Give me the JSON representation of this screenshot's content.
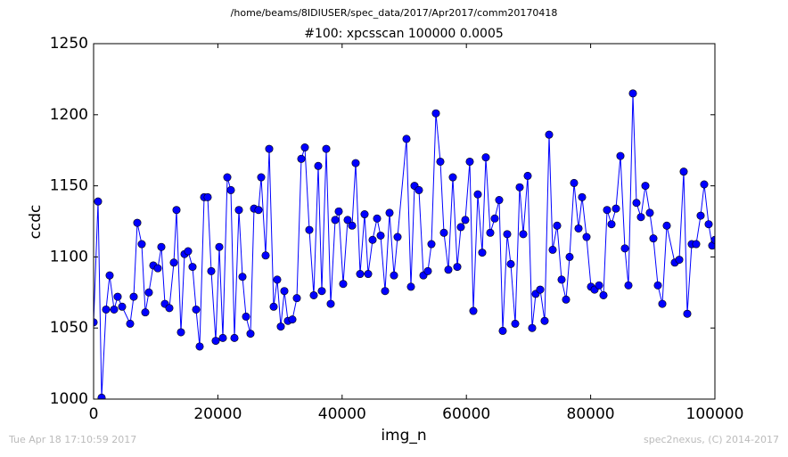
{
  "chart_data": {
    "type": "line",
    "suptitle": "/home/beams/8IDIUSER/spec_data/2017/Apr2017/comm20170418",
    "title": "#100: xpcsscan 100000 0.0005",
    "xlabel": "img_n",
    "ylabel": "ccdc",
    "annotations": [
      "Tue Apr 18 17:10:59 2017",
      "spec2nexus, (C) 2014-2017"
    ],
    "xlim": [
      0,
      100000
    ],
    "ylim": [
      1000,
      1250
    ],
    "xticks": [
      0,
      20000,
      40000,
      60000,
      80000,
      100000
    ],
    "yticks": [
      1000,
      1050,
      1100,
      1150,
      1200,
      1250
    ],
    "grid": false,
    "x": [
      0,
      717,
      1291,
      2009,
      2583,
      3300,
      3874,
      4591,
      5882,
      6456,
      7030,
      7747,
      8321,
      8895,
      9612,
      10330,
      10904,
      11478,
      12195,
      12913,
      13343,
      14060,
      14634,
      15208,
      15925,
      16499,
      17073,
      17791,
      18364,
      18938,
      19656,
      20230,
      20803,
      21521,
      22095,
      22669,
      23386,
      23960,
      24534,
      25251,
      25825,
      26542,
      26973,
      27690,
      28264,
      28981,
      29555,
      30129,
      30703,
      31277,
      31994,
      32712,
      33429,
      34003,
      34720,
      35438,
      36155,
      36729,
      37446,
      38164,
      38881,
      39455,
      40172,
      40890,
      41607,
      42181,
      42898,
      43615,
      44189,
      44907,
      45624,
      46198,
      46915,
      47633,
      48350,
      48924,
      50359,
      51076,
      51650,
      52367,
      53085,
      53802,
      54376,
      55093,
      55811,
      56384,
      57102,
      57819,
      58536,
      59110,
      59828,
      60545,
      61119,
      61836,
      62553,
      63127,
      63845,
      64562,
      65280,
      65853,
      66571,
      67145,
      67862,
      68580,
      69153,
      69871,
      70588,
      71162,
      71880,
      72597,
      73314,
      73888,
      74606,
      75323,
      76040,
      76614,
      77331,
      78049,
      78623,
      79340,
      80057,
      80631,
      81349,
      82066,
      82640,
      83357,
      84075,
      84792,
      85509,
      86083,
      86801,
      87374,
      88092,
      88809,
      89526,
      90100,
      90818,
      91535,
      92253,
      93544,
      94261,
      94979,
      95552,
      96270,
      96987,
      97704,
      98278,
      98996,
      99569,
      100000
    ],
    "series": [
      {
        "color": "#0000ff",
        "values": [
          1054,
          1139,
          1001,
          1063,
          1087,
          1063,
          1072,
          1065,
          1053,
          1072,
          1124,
          1109,
          1061,
          1075,
          1094,
          1092,
          1107,
          1067,
          1064,
          1096,
          1133,
          1047,
          1102,
          1104,
          1093,
          1063,
          1037,
          1142,
          1142,
          1090,
          1041,
          1107,
          1043,
          1156,
          1147,
          1043,
          1133,
          1086,
          1058,
          1046,
          1134,
          1133,
          1156,
          1101,
          1176,
          1065,
          1084,
          1051,
          1076,
          1055,
          1056,
          1071,
          1169,
          1177,
          1119,
          1073,
          1164,
          1076,
          1176,
          1067,
          1126,
          1132,
          1081,
          1126,
          1122,
          1166,
          1088,
          1130,
          1088,
          1112,
          1127,
          1115,
          1076,
          1131,
          1087,
          1114,
          1183,
          1079,
          1150,
          1147,
          1087,
          1090,
          1109,
          1201,
          1167,
          1117,
          1091,
          1156,
          1093,
          1121,
          1126,
          1167,
          1062,
          1144,
          1103,
          1170,
          1117,
          1127,
          1140,
          1048,
          1116,
          1095,
          1053,
          1149,
          1116,
          1157,
          1050,
          1074,
          1077,
          1055,
          1186,
          1105,
          1122,
          1084,
          1070,
          1100,
          1152,
          1120,
          1142,
          1114,
          1079,
          1077,
          1080,
          1073,
          1133,
          1123,
          1134,
          1171,
          1106,
          1080,
          1215,
          1138,
          1128,
          1150,
          1131,
          1113,
          1080,
          1067,
          1122,
          1096,
          1098,
          1160,
          1060,
          1109,
          1109,
          1129,
          1151,
          1123,
          1108,
          1112
        ]
      }
    ]
  }
}
